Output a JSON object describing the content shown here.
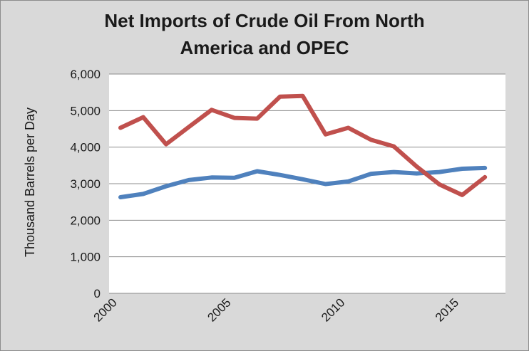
{
  "chart_data": {
    "type": "line",
    "title_line1": "Net Imports of Crude Oil From North",
    "title_line2": "America and OPEC",
    "ylabel": "Thousand Barrels per Day",
    "xlabel": "",
    "ylim": [
      0,
      6000
    ],
    "y_ticks": [
      "6,000",
      "5,000",
      "4,000",
      "3,000",
      "2,000",
      "1,000",
      "0"
    ],
    "x_ticks": [
      "2000",
      "2005",
      "2010",
      "2015"
    ],
    "x": [
      2000,
      2001,
      2002,
      2003,
      2004,
      2005,
      2006,
      2007,
      2008,
      2009,
      2010,
      2011,
      2012,
      2013,
      2014,
      2015,
      2016
    ],
    "series": [
      {
        "color": "#4f81bd",
        "values": [
          2630,
          2720,
          2930,
          3100,
          3170,
          3160,
          3340,
          3240,
          3120,
          2990,
          3060,
          3270,
          3320,
          3280,
          3320,
          3410,
          3430
        ]
      },
      {
        "color": "#c0504d",
        "values": [
          4530,
          4820,
          4080,
          4550,
          5020,
          4800,
          4780,
          5380,
          5400,
          4350,
          4530,
          4200,
          4020,
          3470,
          2980,
          2690,
          3180
        ]
      }
    ],
    "grid": true,
    "legend": "none"
  }
}
